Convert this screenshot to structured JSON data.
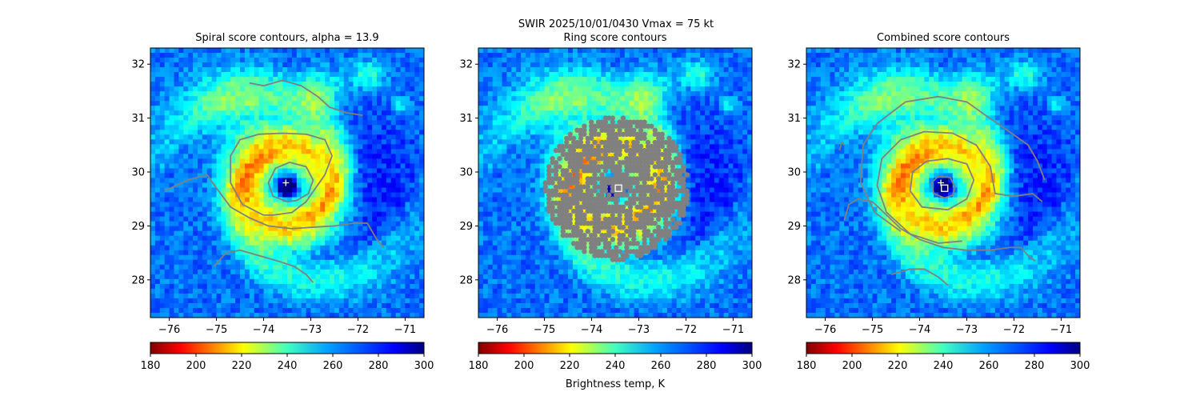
{
  "figure": {
    "suptitle_line1": "SWIR  2025/10/01/0430    Vmax = 75 kt",
    "colorbar_label": "Brightness temp, K"
  },
  "chart_data": [
    {
      "type": "heatmap",
      "title": "Spiral score contours, alpha = 13.9",
      "xlim": [
        -76.4,
        -70.6
      ],
      "ylim": [
        27.3,
        32.3
      ],
      "xticks": [
        -76,
        -75,
        -74,
        -73,
        -72,
        -71
      ],
      "xtick_labels": [
        "−76",
        "−75",
        "−74",
        "−73",
        "−72",
        "−71"
      ],
      "yticks": [
        28,
        29,
        30,
        31,
        32
      ],
      "ytick_labels": [
        "28",
        "29",
        "30",
        "31",
        "32"
      ],
      "colormap": "jet_r",
      "clim": [
        180,
        300
      ],
      "eye": [
        -73.5,
        29.73
      ],
      "marker": {
        "kind": "plus",
        "lon": -73.53,
        "lat": 29.8,
        "color": "#ffffff"
      },
      "contours": [
        [
          [
            -76.1,
            29.65
          ],
          [
            -75.6,
            29.85
          ],
          [
            -75.2,
            29.95
          ],
          [
            -75.0,
            29.7
          ],
          [
            -74.7,
            29.35
          ],
          [
            -74.3,
            29.15
          ],
          [
            -73.9,
            29.0
          ],
          [
            -73.4,
            28.95
          ],
          [
            -72.9,
            28.98
          ],
          [
            -72.5,
            29.0
          ],
          [
            -72.1,
            29.05
          ],
          [
            -71.8,
            29.05
          ],
          [
            -71.6,
            28.75
          ],
          [
            -71.45,
            28.6
          ]
        ],
        [
          [
            -75.05,
            28.25
          ],
          [
            -74.8,
            28.5
          ],
          [
            -74.5,
            28.55
          ],
          [
            -74.1,
            28.45
          ],
          [
            -73.7,
            28.35
          ],
          [
            -73.35,
            28.25
          ],
          [
            -73.1,
            28.1
          ],
          [
            -72.95,
            27.95
          ]
        ],
        [
          [
            -74.3,
            31.65
          ],
          [
            -74.0,
            31.6
          ],
          [
            -73.6,
            31.7
          ],
          [
            -73.2,
            31.6
          ],
          [
            -72.85,
            31.4
          ],
          [
            -72.6,
            31.2
          ],
          [
            -72.25,
            31.1
          ],
          [
            -71.9,
            31.05
          ]
        ],
        [
          [
            -74.0,
            29.2
          ],
          [
            -74.45,
            29.4
          ],
          [
            -74.7,
            29.8
          ],
          [
            -74.7,
            30.3
          ],
          [
            -74.5,
            30.6
          ],
          [
            -74.1,
            30.7
          ],
          [
            -73.6,
            30.72
          ],
          [
            -73.1,
            30.7
          ],
          [
            -72.7,
            30.6
          ],
          [
            -72.55,
            30.3
          ],
          [
            -72.7,
            29.95
          ],
          [
            -72.9,
            29.7
          ],
          [
            -73.1,
            29.45
          ],
          [
            -73.4,
            29.25
          ],
          [
            -73.8,
            29.2
          ],
          [
            -74.0,
            29.2
          ]
        ],
        [
          [
            -73.5,
            29.45
          ],
          [
            -73.8,
            29.55
          ],
          [
            -73.9,
            29.8
          ],
          [
            -73.75,
            30.07
          ],
          [
            -73.45,
            30.18
          ],
          [
            -73.1,
            30.1
          ],
          [
            -72.95,
            29.85
          ],
          [
            -73.05,
            29.6
          ],
          [
            -73.3,
            29.47
          ],
          [
            -73.5,
            29.45
          ]
        ]
      ],
      "colorbar": {
        "ticks": [
          180,
          200,
          220,
          240,
          260,
          280,
          300
        ],
        "tick_labels": [
          "180",
          "200",
          "220",
          "240",
          "260",
          "280",
          "300"
        ]
      }
    },
    {
      "type": "heatmap",
      "title": "Ring score contours",
      "xlim": [
        -76.4,
        -70.6
      ],
      "ylim": [
        27.3,
        32.3
      ],
      "xticks": [
        -76,
        -75,
        -74,
        -73,
        -72,
        -71
      ],
      "xtick_labels": [
        "−76",
        "−75",
        "−74",
        "−73",
        "−72",
        "−71"
      ],
      "yticks": [
        28,
        29,
        30,
        31,
        32
      ],
      "ytick_labels": [
        "28",
        "29",
        "30",
        "31",
        "32"
      ],
      "colormap": "jet_r",
      "clim": [
        180,
        300
      ],
      "eye": [
        -73.5,
        29.73
      ],
      "ring_disk": {
        "lon": -73.45,
        "lat": 29.7,
        "radius_deg": 1.4
      },
      "marker": {
        "kind": "square",
        "lon": -73.43,
        "lat": 29.7,
        "color": "#ffffff"
      },
      "colorbar": {
        "ticks": [
          180,
          200,
          220,
          240,
          260,
          280,
          300
        ],
        "tick_labels": [
          "180",
          "200",
          "220",
          "240",
          "260",
          "280",
          "300"
        ]
      }
    },
    {
      "type": "heatmap",
      "title": "Combined score contours",
      "xlim": [
        -76.4,
        -70.6
      ],
      "ylim": [
        27.3,
        32.3
      ],
      "xticks": [
        -76,
        -75,
        -74,
        -73,
        -72,
        -71
      ],
      "xtick_labels": [
        "−76",
        "−75",
        "−74",
        "−73",
        "−72",
        "−71"
      ],
      "yticks": [
        28,
        29,
        30,
        31,
        32
      ],
      "ytick_labels": [
        "28",
        "29",
        "30",
        "31",
        "32"
      ],
      "colormap": "jet_r",
      "clim": [
        180,
        300
      ],
      "eye": [
        -73.5,
        29.73
      ],
      "marker": {
        "kind": "square",
        "lon": -73.47,
        "lat": 29.7,
        "color": "#ffffff"
      },
      "marker2": {
        "kind": "plus",
        "lon": -73.55,
        "lat": 29.8,
        "color": "#ffffff"
      },
      "contours": [
        [
          [
            -75.6,
            29.1
          ],
          [
            -75.5,
            29.4
          ],
          [
            -75.3,
            29.5
          ],
          [
            -75.0,
            29.45
          ],
          [
            -74.7,
            29.2
          ],
          [
            -74.4,
            28.95
          ],
          [
            -74.0,
            28.75
          ],
          [
            -73.5,
            28.6
          ],
          [
            -73.0,
            28.55
          ],
          [
            -72.5,
            28.55
          ],
          [
            -72.1,
            28.6
          ],
          [
            -71.85,
            28.6
          ],
          [
            -71.7,
            28.45
          ],
          [
            -71.55,
            28.35
          ]
        ],
        [
          [
            -74.6,
            28.1
          ],
          [
            -74.2,
            28.2
          ],
          [
            -73.9,
            28.2
          ],
          [
            -73.6,
            28.05
          ],
          [
            -73.4,
            27.9
          ]
        ],
        [
          [
            -75.7,
            30.4
          ],
          [
            -75.65,
            30.55
          ],
          [
            -75.6,
            30.5
          ]
        ],
        [
          [
            -74.4,
            28.9
          ],
          [
            -74.95,
            29.25
          ],
          [
            -75.25,
            29.8
          ],
          [
            -75.2,
            30.5
          ],
          [
            -74.9,
            30.9
          ],
          [
            -74.3,
            31.3
          ],
          [
            -73.6,
            31.4
          ],
          [
            -73.0,
            31.3
          ],
          [
            -72.6,
            31.05
          ],
          [
            -72.1,
            30.75
          ],
          [
            -71.7,
            30.5
          ],
          [
            -71.5,
            30.2
          ],
          [
            -71.35,
            29.85
          ]
        ],
        [
          [
            -73.1,
            28.72
          ],
          [
            -73.6,
            28.68
          ],
          [
            -74.2,
            28.85
          ],
          [
            -74.7,
            29.25
          ],
          [
            -74.9,
            29.75
          ],
          [
            -74.8,
            30.25
          ],
          [
            -74.4,
            30.6
          ],
          [
            -73.9,
            30.75
          ],
          [
            -73.3,
            30.72
          ],
          [
            -72.8,
            30.5
          ],
          [
            -72.5,
            30.1
          ],
          [
            -72.4,
            29.6
          ],
          [
            -72.0,
            29.55
          ],
          [
            -71.6,
            29.6
          ],
          [
            -71.4,
            29.45
          ]
        ],
        [
          [
            -73.4,
            29.3
          ],
          [
            -73.95,
            29.35
          ],
          [
            -74.2,
            29.65
          ],
          [
            -74.15,
            30.0
          ],
          [
            -73.85,
            30.2
          ],
          [
            -73.4,
            30.25
          ],
          [
            -73.0,
            30.15
          ],
          [
            -72.85,
            29.85
          ],
          [
            -73.0,
            29.5
          ],
          [
            -73.4,
            29.3
          ]
        ],
        [
          [
            -73.47,
            29.52
          ],
          [
            -73.7,
            29.6
          ],
          [
            -73.75,
            29.8
          ],
          [
            -73.6,
            29.92
          ],
          [
            -73.35,
            29.9
          ],
          [
            -73.25,
            29.72
          ],
          [
            -73.3,
            29.57
          ],
          [
            -73.47,
            29.52
          ]
        ]
      ],
      "colorbar": {
        "ticks": [
          180,
          200,
          220,
          240,
          260,
          280,
          300
        ],
        "tick_labels": [
          "180",
          "200",
          "220",
          "240",
          "260",
          "280",
          "300"
        ]
      }
    }
  ]
}
